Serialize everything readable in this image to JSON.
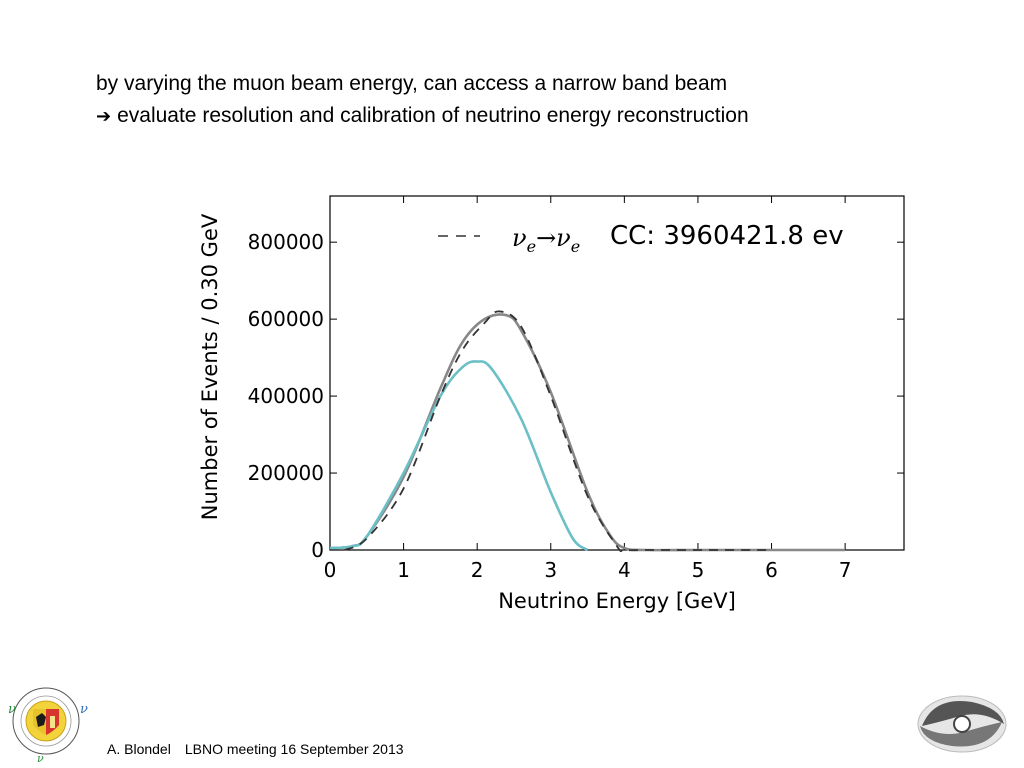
{
  "slide": {
    "line1": "by varying the muon beam energy, can access a narrow band beam",
    "line2": "evaluate resolution and calibration  of neutrino energy reconstruction",
    "arrow_icon": "right-arrow-icon"
  },
  "footer": {
    "author": "A. Blondel",
    "meeting": "LBNO meeting 16 September 2013"
  },
  "chart_data": {
    "type": "line",
    "xlabel": "Neutrino Energy [GeV]",
    "ylabel": "Number of Events / 0.30 GeV",
    "xlim": [
      0,
      7.8
    ],
    "ylim": [
      0,
      920000
    ],
    "xticks": [
      "0",
      "1",
      "2",
      "3",
      "4",
      "5",
      "6",
      "7"
    ],
    "yticks": [
      "0",
      "200000",
      "400000",
      "600000",
      "800000"
    ],
    "legend": {
      "placement": "top-right",
      "process_a": "ν",
      "process_a_sub": "e",
      "arrow": "→",
      "process_b": "ν",
      "process_b_sub": "e",
      "text": "CC: 3960421.8 ev"
    },
    "series": [
      {
        "style": "dashed",
        "color": "#333333",
        "x": [
          0.2,
          0.5,
          1.0,
          1.5,
          1.8,
          2.1,
          2.3,
          2.6,
          3.0,
          3.5,
          3.9,
          4.0,
          4.3,
          5.0,
          6.0
        ],
        "y": [
          0,
          30000,
          160000,
          400000,
          520000,
          590000,
          620000,
          580000,
          400000,
          140000,
          10000,
          0,
          0,
          0,
          0
        ]
      },
      {
        "style": "solid",
        "color": "#888888",
        "x": [
          0.0,
          0.3,
          0.5,
          1.0,
          1.5,
          1.8,
          2.1,
          2.4,
          2.6,
          3.0,
          3.5,
          3.8,
          4.0,
          4.3,
          5.0,
          6.0,
          7.0
        ],
        "y": [
          5000,
          10000,
          35000,
          190000,
          420000,
          540000,
          600000,
          610000,
          570000,
          410000,
          150000,
          40000,
          5000,
          0,
          0,
          0,
          0
        ]
      },
      {
        "style": "solid",
        "color": "#6bbfc6",
        "x": [
          0.0,
          0.3,
          0.5,
          1.0,
          1.5,
          1.8,
          2.0,
          2.2,
          2.6,
          3.0,
          3.3,
          3.5
        ],
        "y": [
          5000,
          10000,
          35000,
          200000,
          400000,
          475000,
          490000,
          470000,
          340000,
          150000,
          30000,
          0
        ]
      }
    ]
  }
}
